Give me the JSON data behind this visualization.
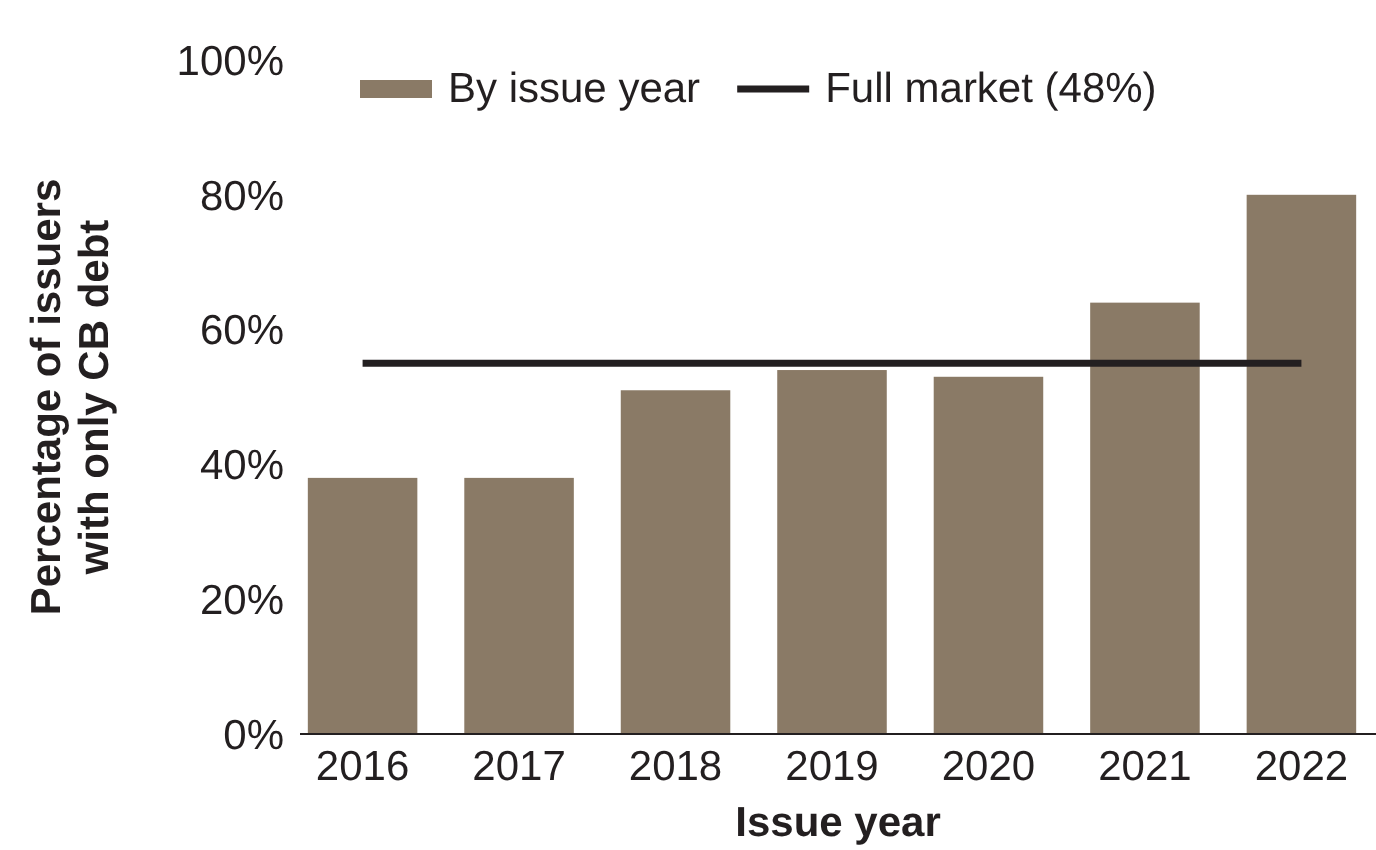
{
  "chart_data": {
    "type": "bar",
    "xlabel": "Issue year",
    "ylabel": "Percentage of issuers with only CB debt",
    "categories": [
      "2016",
      "2017",
      "2018",
      "2019",
      "2020",
      "2021",
      "2022"
    ],
    "series": [
      {
        "name": "By issue year",
        "color": "#8a7a66",
        "values": [
          38,
          38,
          51,
          54,
          53,
          64,
          80
        ]
      },
      {
        "name": "Full market (48%)",
        "type": "line",
        "color": "#231f20",
        "values": [
          55,
          55,
          55,
          55,
          55,
          55,
          55
        ]
      }
    ],
    "ylim": [
      0,
      100
    ],
    "yticks": [
      {
        "value": 0,
        "label": "0%"
      },
      {
        "value": 20,
        "label": "20%"
      },
      {
        "value": 40,
        "label": "40%"
      },
      {
        "value": 60,
        "label": "60%"
      },
      {
        "value": 80,
        "label": "80%"
      },
      {
        "value": 100,
        "label": "100%"
      }
    ],
    "grid": false,
    "legend": "top"
  }
}
